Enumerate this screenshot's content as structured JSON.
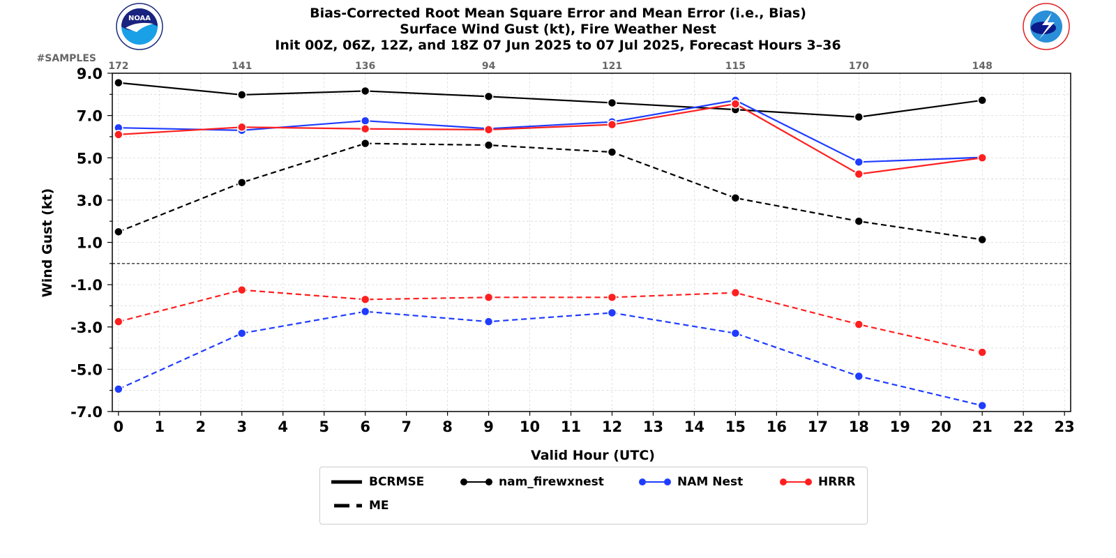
{
  "title": {
    "line1": "Bias-Corrected Root Mean Square Error and Mean Error (i.e., Bias)",
    "line2": "Surface Wind Gust (kt), Fire Weather Nest",
    "line3": "Init 00Z, 06Z, 12Z, and 18Z 07 Jun 2025 to 07 Jul 2025, Forecast Hours 3–36"
  },
  "samples_label": "#SAMPLES",
  "logos": {
    "left": "noaa-logo",
    "right": "nws-logo"
  },
  "chart_data": {
    "type": "line",
    "xlabel": "Valid Hour (UTC)",
    "ylabel": "Wind Gust (kt)",
    "xlim": [
      -0.15,
      23.15
    ],
    "ylim": [
      -7.0,
      9.0
    ],
    "x_ticks": [
      0,
      1,
      2,
      3,
      4,
      5,
      6,
      7,
      8,
      9,
      10,
      11,
      12,
      13,
      14,
      15,
      16,
      17,
      18,
      19,
      20,
      21,
      22,
      23
    ],
    "y_ticks": [
      "9.0",
      "7.0",
      "5.0",
      "3.0",
      "1.0",
      "-1.0",
      "-3.0",
      "-5.0",
      "-7.0"
    ],
    "y_tick_values": [
      9,
      7,
      5,
      3,
      1,
      -1,
      -3,
      -5,
      -7
    ],
    "grid": true,
    "zero_line": true,
    "x": [
      0,
      3,
      6,
      9,
      12,
      15,
      18,
      21
    ],
    "samples": [
      "172",
      "141",
      "136",
      "94",
      "121",
      "115",
      "170",
      "148"
    ],
    "series": [
      {
        "name": "nam_firewxnest",
        "metric": "BCRMSE",
        "color": "#000000",
        "values": [
          8.55,
          7.98,
          8.16,
          7.9,
          7.6,
          7.28,
          6.93,
          7.72
        ]
      },
      {
        "name": "NAM Nest",
        "metric": "BCRMSE",
        "color": "#1f3cff",
        "values": [
          6.42,
          6.3,
          6.75,
          6.38,
          6.7,
          7.72,
          4.8,
          5.02
        ]
      },
      {
        "name": "HRRR",
        "metric": "BCRMSE",
        "color": "#ff1f1f",
        "values": [
          6.1,
          6.45,
          6.37,
          6.33,
          6.57,
          7.55,
          4.23,
          5.0
        ]
      },
      {
        "name": "nam_firewxnest",
        "metric": "ME",
        "color": "#000000",
        "values": [
          1.5,
          3.83,
          5.68,
          5.6,
          5.27,
          3.1,
          2.0,
          1.13
        ]
      },
      {
        "name": "NAM Nest",
        "metric": "ME",
        "color": "#1f3cff",
        "values": [
          -5.94,
          -3.3,
          -2.27,
          -2.75,
          -2.33,
          -3.3,
          -5.33,
          -6.72
        ]
      },
      {
        "name": "HRRR",
        "metric": "ME",
        "color": "#ff1f1f",
        "values": [
          -2.75,
          -1.25,
          -1.7,
          -1.6,
          -1.6,
          -1.38,
          -2.88,
          -4.2
        ]
      }
    ],
    "legend": {
      "placement": "bottom-center",
      "entries": [
        "BCRMSE",
        "nam_firewxnest",
        "NAM Nest",
        "HRRR",
        "ME"
      ]
    }
  }
}
